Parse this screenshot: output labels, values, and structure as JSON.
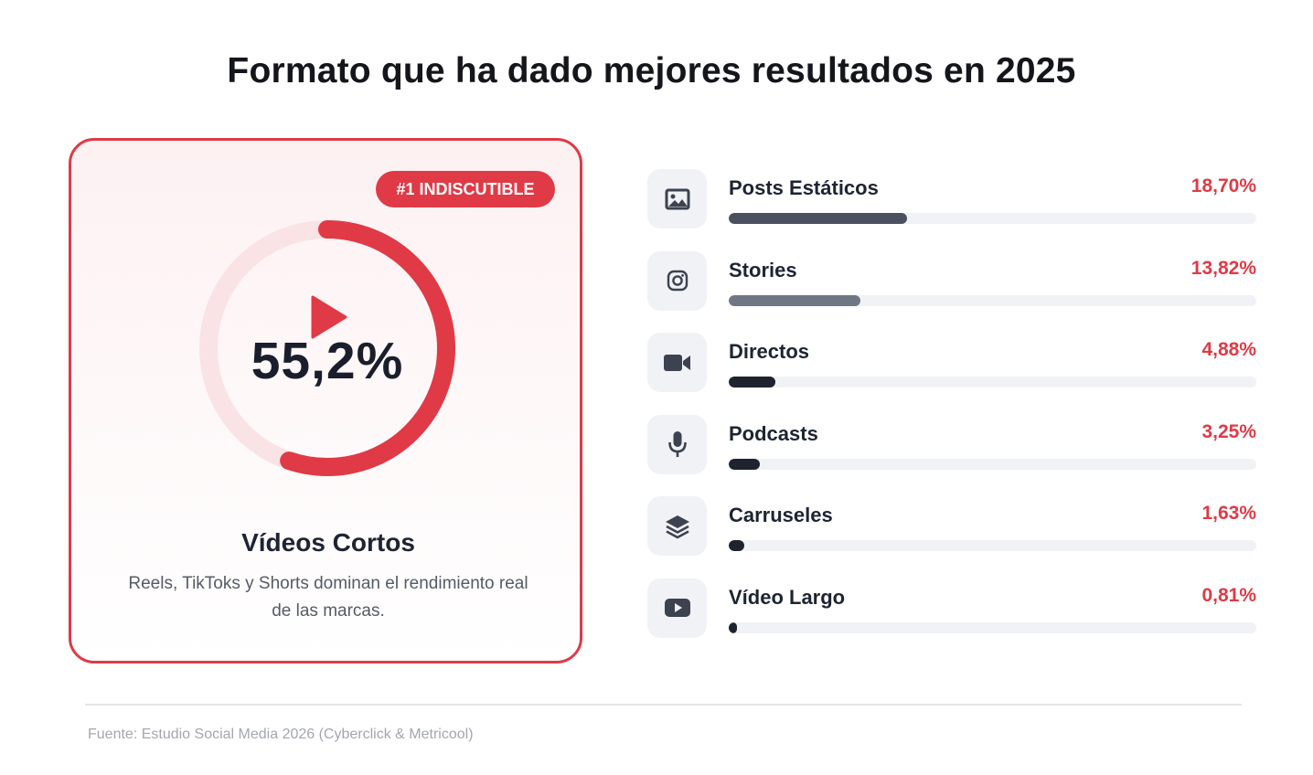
{
  "title": "Formato que ha dado mejores resultados en 2025",
  "highlight": {
    "badge": "#1 INDISCUTIBLE",
    "value_label": "55,2%",
    "value": 55.2,
    "name": "Vídeos Cortos",
    "description": "Reels, TikToks y Shorts dominan el rendimiento real de las marcas.",
    "icon": "play-icon"
  },
  "colors": {
    "accent": "#e03a46",
    "ring_track": "#fae3e5",
    "bar_track": "#f1f2f5",
    "icon_bg": "#f1f2f5"
  },
  "chart_data": {
    "type": "bar",
    "orientation": "horizontal",
    "categories": [
      "Posts Estáticos",
      "Stories",
      "Directos",
      "Podcasts",
      "Carruseles",
      "Vídeo Largo"
    ],
    "values": [
      18.7,
      13.82,
      4.88,
      3.25,
      1.63,
      0.81
    ],
    "value_labels": [
      "18,70%",
      "13,82%",
      "4,88%",
      "3,25%",
      "1,63%",
      "0,81%"
    ],
    "icons": [
      "image-icon",
      "instagram-icon",
      "video-camera-icon",
      "microphone-icon",
      "layers-icon",
      "youtube-icon"
    ],
    "bar_colors": [
      "#4a505e",
      "#707784",
      "#1f2330",
      "#1f2330",
      "#1f2330",
      "#1f2330"
    ],
    "xlim": [
      0,
      55.2
    ]
  },
  "source": "Fuente: Estudio Social Media 2026 (Cyberclick & Metricool)"
}
